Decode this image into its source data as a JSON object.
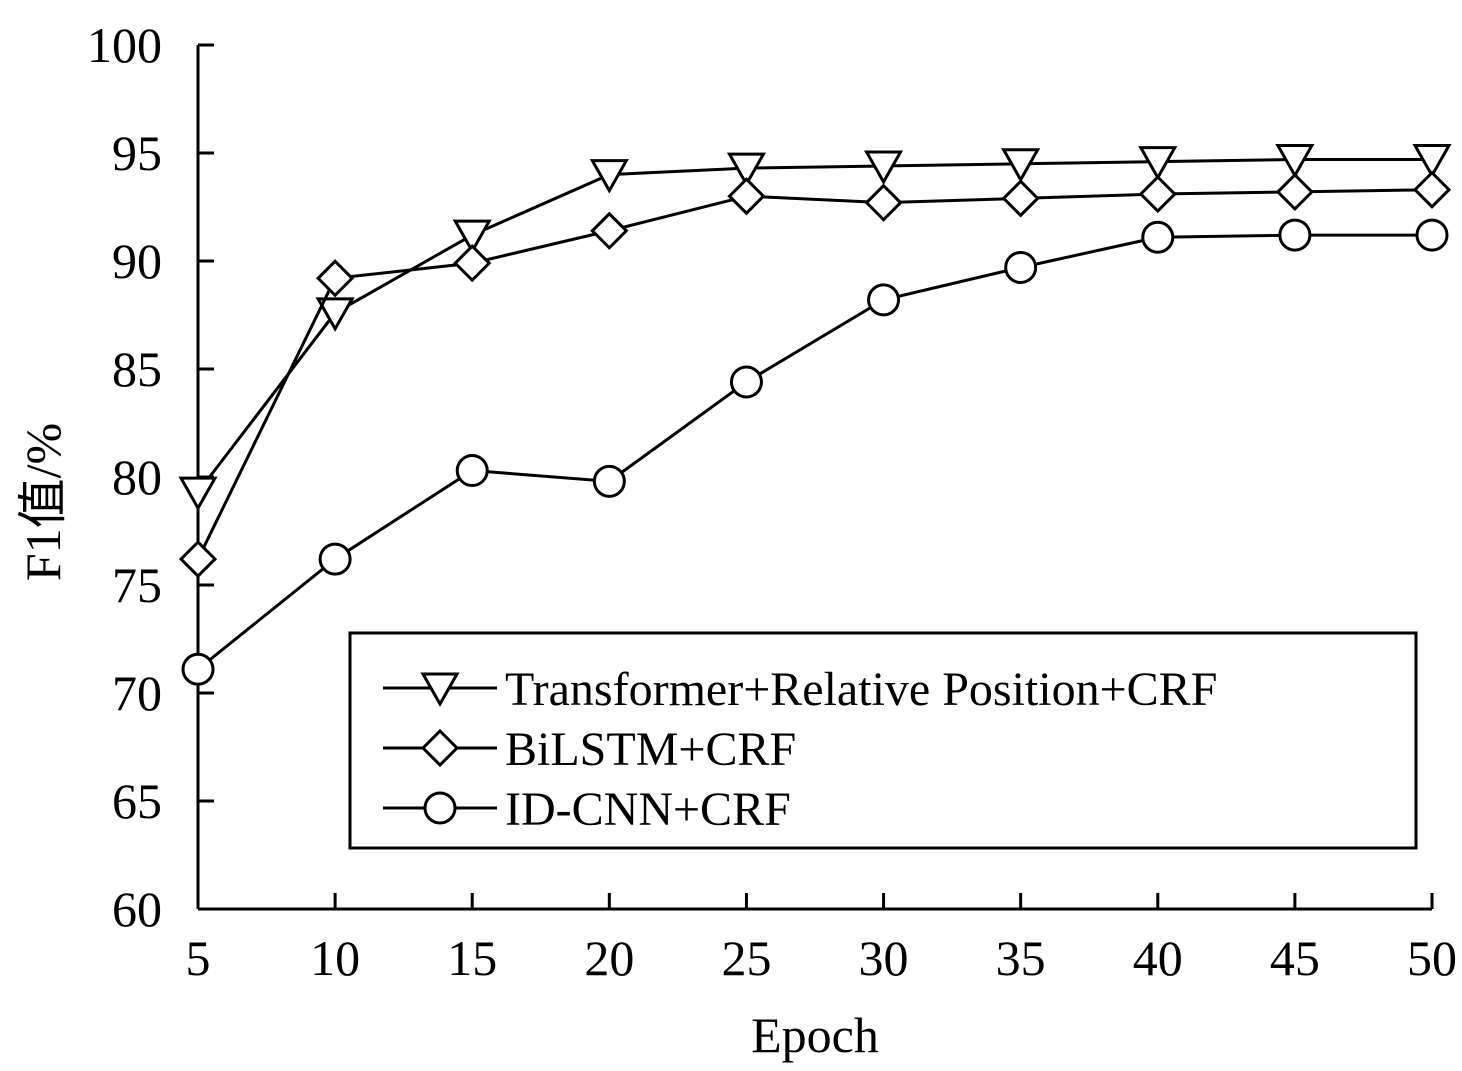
{
  "chart_data": {
    "type": "line",
    "xlabel": "Epoch",
    "ylabel": "F1值/%",
    "x": [
      5,
      10,
      15,
      20,
      25,
      30,
      35,
      40,
      45,
      50
    ],
    "xlim": [
      5,
      50
    ],
    "ylim": [
      60,
      100
    ],
    "x_ticks": [
      5,
      10,
      15,
      20,
      25,
      30,
      35,
      40,
      45,
      50
    ],
    "y_ticks": [
      60,
      65,
      70,
      75,
      80,
      85,
      90,
      95,
      100
    ],
    "grid": false,
    "legend_position": "bottom-right",
    "series": [
      {
        "name": "Transformer+Relative Position+CRF",
        "marker": "triangle-down",
        "values": [
          79.3,
          87.6,
          91.2,
          94.0,
          94.3,
          94.4,
          94.5,
          94.6,
          94.7,
          94.7
        ]
      },
      {
        "name": "BiLSTM+CRF",
        "marker": "diamond",
        "values": [
          76.2,
          89.2,
          89.9,
          91.4,
          93.0,
          92.7,
          92.9,
          93.1,
          93.2,
          93.3
        ]
      },
      {
        "name": "ID-CNN+CRF",
        "marker": "circle",
        "values": [
          71.1,
          76.2,
          80.3,
          79.8,
          84.4,
          88.2,
          89.7,
          91.1,
          91.2,
          91.2
        ]
      }
    ],
    "colors": {
      "line": "#000000",
      "background": "#ffffff"
    }
  }
}
